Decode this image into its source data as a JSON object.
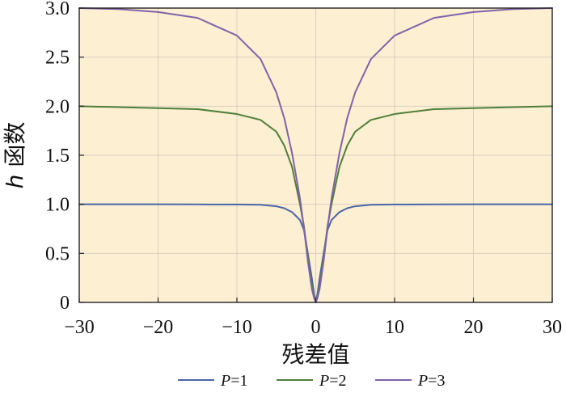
{
  "chart_data": {
    "type": "line",
    "title": "",
    "xlabel": "残差值",
    "ylabel_symbol": "h",
    "ylabel_text": "函数",
    "xlim": [
      -30,
      30
    ],
    "ylim": [
      0,
      3
    ],
    "xticks": [
      -30,
      -20,
      -10,
      0,
      10,
      20,
      30
    ],
    "xtick_labels": [
      "−30",
      "−20",
      "−10",
      "0",
      "10",
      "20",
      "30"
    ],
    "yticks": [
      0,
      0.5,
      1.0,
      1.5,
      2.0,
      2.5,
      3.0
    ],
    "ytick_labels": [
      "0",
      "0.5",
      "1.0",
      "1.5",
      "2.0",
      "2.5",
      "3.0"
    ],
    "grid": true,
    "background_color": "#FDEFD2",
    "grid_color": "#D9CFC0",
    "legend_position": "bottom",
    "x": [
      -30,
      -25,
      -20,
      -15,
      -10,
      -7,
      -5,
      -4,
      -3,
      -2,
      -1.5,
      -1,
      -0.5,
      -0.2,
      0,
      0.2,
      0.5,
      1,
      1.5,
      2,
      3,
      4,
      5,
      7,
      10,
      15,
      20,
      25,
      30
    ],
    "series": [
      {
        "name": "P=1",
        "name_symbol": "P",
        "name_value": "=1",
        "color": "#4A66A8",
        "values": [
          1.0,
          1.0,
          1.0,
          0.999,
          0.998,
          0.995,
          0.98,
          0.96,
          0.92,
          0.84,
          0.74,
          0.5,
          0.25,
          0.08,
          0.0,
          0.08,
          0.25,
          0.5,
          0.74,
          0.84,
          0.92,
          0.96,
          0.98,
          0.995,
          0.998,
          0.999,
          1.0,
          1.0,
          1.0
        ]
      },
      {
        "name": "P=2",
        "name_symbol": "P",
        "name_value": "=2",
        "color": "#4E7F3A",
        "values": [
          2.0,
          1.99,
          1.98,
          1.97,
          1.92,
          1.86,
          1.74,
          1.6,
          1.38,
          1.0,
          0.78,
          0.46,
          0.18,
          0.05,
          0.0,
          0.05,
          0.18,
          0.46,
          0.78,
          1.0,
          1.38,
          1.6,
          1.74,
          1.86,
          1.92,
          1.97,
          1.98,
          1.99,
          2.0
        ]
      },
      {
        "name": "P=3",
        "name_symbol": "P",
        "name_value": "=3",
        "color": "#7F63A8",
        "values": [
          3.0,
          2.99,
          2.96,
          2.9,
          2.72,
          2.48,
          2.14,
          1.88,
          1.52,
          1.06,
          0.76,
          0.42,
          0.14,
          0.04,
          0.0,
          0.04,
          0.14,
          0.42,
          0.76,
          1.06,
          1.52,
          1.88,
          2.14,
          2.48,
          2.72,
          2.9,
          2.96,
          2.99,
          3.0
        ]
      }
    ]
  }
}
